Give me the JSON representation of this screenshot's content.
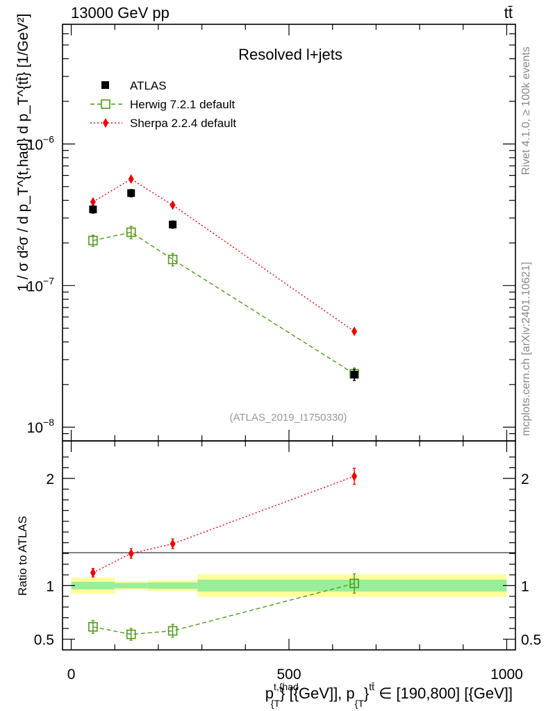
{
  "header": {
    "energy": "13000 GeV pp",
    "process_top": "tt",
    "process_bar": "̄"
  },
  "side_labels": {
    "rivet": "Rivet 4.1.0, ≥ 100k events",
    "mcplots": "mcplots.cern.ch [arXiv:2401.10621]"
  },
  "analysis_id": "(ATLAS_2019_I1750330)",
  "chart_data": [
    {
      "type": "scatter",
      "panel": "main",
      "title": "Resolved l+jets",
      "yscale": "log",
      "ylim": [
        8e-09,
        7e-06
      ],
      "xlim": [
        -20,
        1020
      ],
      "ylabel": "1 / σ d²σ / d p_T^{t,had} d p_T^{tt̄} [1/GeV²]",
      "yticks": [
        {
          "value": 1e-06,
          "base": "10",
          "exp": "−6"
        },
        {
          "value": 1e-07,
          "base": "10",
          "exp": "−7"
        },
        {
          "value": 1e-08,
          "base": "10",
          "exp": "−8"
        }
      ],
      "series": [
        {
          "name": "ATLAS",
          "style": "data",
          "color": "#000000",
          "x": [
            50,
            137.5,
            233,
            650
          ],
          "y": [
            3.45e-07,
            4.5e-07,
            2.7e-07,
            2.35e-08
          ],
          "yerr": [
            0.06,
            0.06,
            0.06,
            0.09
          ]
        },
        {
          "name": "Herwig 7.2.1 default",
          "style": "herwig",
          "color": "#4d9a1a",
          "x": [
            50,
            137.5,
            233,
            650
          ],
          "y": [
            2.08e-07,
            2.38e-07,
            1.53e-07,
            2.38e-08
          ],
          "yerr": [
            0.09,
            0.1,
            0.1,
            0.1
          ]
        },
        {
          "name": "Sherpa 2.2.4 default",
          "style": "sherpa",
          "color": "#ee0000",
          "x": [
            50,
            137.5,
            233,
            650
          ],
          "y": [
            3.9e-07,
            5.65e-07,
            3.7e-07,
            4.75e-08
          ],
          "yerr": [
            0.03,
            0.03,
            0.03,
            0.03
          ]
        }
      ]
    },
    {
      "type": "scatter",
      "panel": "ratio",
      "ylabel": "Ratio to ATLAS",
      "xlabel": "p_T^{t,had} [GeV], p_T^{tt̄} ∈ [190,800] [GeV]",
      "xlabel_parts": {
        "p1": "p",
        "sup1": "t,{had",
        "sub1": "{T",
        "mid": "} [{GeV]], p",
        "sub2": "{T",
        "mid2": "}",
        "sup2": "tt̄",
        "tail": " ∈ [190,800] [{GeV]]"
      },
      "ylim": [
        0.4,
        2.35
      ],
      "yticks": [
        {
          "value": 0.5,
          "label": "0.5"
        },
        {
          "value": 1,
          "label": "1"
        },
        {
          "value": 2,
          "label": "2"
        }
      ],
      "xticks": [
        {
          "value": 0,
          "label": "0"
        },
        {
          "value": 500,
          "label": "500"
        },
        {
          "value": 1000,
          "label": "1000"
        }
      ],
      "bands": [
        {
          "x0": 0,
          "x1": 100,
          "stat": [
            0.965,
            1.035
          ],
          "total": [
            0.925,
            1.075
          ]
        },
        {
          "x0": 100,
          "x1": 175,
          "stat": [
            0.975,
            1.025
          ],
          "total": [
            0.96,
            1.04
          ]
        },
        {
          "x0": 175,
          "x1": 290,
          "stat": [
            0.97,
            1.03
          ],
          "total": [
            0.95,
            1.05
          ]
        },
        {
          "x0": 290,
          "x1": 1000,
          "stat": [
            0.945,
            1.055
          ],
          "total": [
            0.895,
            1.105
          ]
        }
      ],
      "series": [
        {
          "name": "Herwig 7.2.1 default",
          "style": "herwig",
          "color": "#4d9a1a",
          "x": [
            50,
            137.5,
            233,
            650
          ],
          "y": [
            0.615,
            0.545,
            0.578,
            1.02
          ],
          "yerr": [
            0.06,
            0.055,
            0.06,
            0.09
          ]
        },
        {
          "name": "Sherpa 2.2.4 default",
          "style": "sherpa",
          "color": "#ee0000",
          "x": [
            50,
            137.5,
            233,
            650
          ],
          "y": [
            1.12,
            1.3,
            1.39,
            2.02
          ],
          "yerr": [
            0.04,
            0.045,
            0.045,
            0.075
          ]
        }
      ]
    }
  ]
}
